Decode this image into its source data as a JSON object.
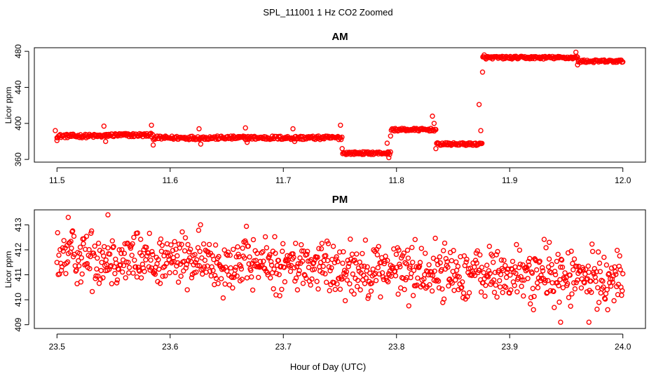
{
  "figure": {
    "title": "SPL_111001  1 Hz CO2 Zoomed",
    "xlabel": "Hour of Day (UTC)"
  },
  "colors": {
    "points": "#ff0000",
    "axes": "#000000",
    "background": "#ffffff"
  },
  "chart_data": [
    {
      "type": "scatter",
      "title": "AM",
      "xlabel": "",
      "ylabel": "Licor ppm",
      "xlim": [
        11.48,
        12.02
      ],
      "ylim": [
        357,
        484
      ],
      "xticks": [
        11.5,
        11.6,
        11.7,
        11.8,
        11.9,
        12.0
      ],
      "xtick_labels": [
        "11.5",
        "11.6",
        "11.7",
        "11.8",
        "11.9",
        "12.0"
      ],
      "yticks": [
        360,
        400,
        440,
        480
      ],
      "ytick_labels": [
        "360",
        "400",
        "440",
        "480"
      ],
      "marker": "open-circle",
      "segments": [
        {
          "x_start": 11.5,
          "x_end": 11.545,
          "level": 386,
          "noise": 2
        },
        {
          "x_start": 11.545,
          "x_end": 11.585,
          "level": 387,
          "noise": 2
        },
        {
          "x_start": 11.585,
          "x_end": 11.752,
          "level": 384,
          "noise": 2
        },
        {
          "x_start": 11.752,
          "x_end": 11.795,
          "level": 367,
          "noise": 1.5
        },
        {
          "x_start": 11.795,
          "x_end": 11.835,
          "level": 393,
          "noise": 1.5
        },
        {
          "x_start": 11.835,
          "x_end": 11.876,
          "level": 377,
          "noise": 1.5
        },
        {
          "x_start": 11.876,
          "x_end": 11.96,
          "level": 473,
          "noise": 1.5
        },
        {
          "x_start": 11.96,
          "x_end": 12.0,
          "level": 469,
          "noise": 1.5
        }
      ],
      "spikes": [
        {
          "x": 11.5,
          "values": [
            392,
            381
          ]
        },
        {
          "x": 11.543,
          "values": [
            397,
            380
          ]
        },
        {
          "x": 11.585,
          "values": [
            398,
            376
          ]
        },
        {
          "x": 11.627,
          "values": [
            394,
            377
          ]
        },
        {
          "x": 11.668,
          "values": [
            395,
            379
          ]
        },
        {
          "x": 11.71,
          "values": [
            394,
            380
          ]
        },
        {
          "x": 11.752,
          "values": [
            398,
            372
          ]
        },
        {
          "x": 11.794,
          "values": [
            378,
            362,
            386
          ]
        },
        {
          "x": 11.834,
          "values": [
            408,
            400,
            372
          ]
        },
        {
          "x": 11.876,
          "values": [
            421,
            392,
            457,
            476
          ]
        },
        {
          "x": 11.96,
          "values": [
            479,
            465
          ]
        }
      ],
      "n_points": 700
    },
    {
      "type": "scatter",
      "title": "PM",
      "xlabel": "Hour of Day (UTC)",
      "ylabel": "Licor ppm",
      "xlim": [
        23.48,
        24.02
      ],
      "ylim": [
        408.85,
        413.6
      ],
      "xticks": [
        23.5,
        23.6,
        23.7,
        23.8,
        23.9,
        24.0
      ],
      "xtick_labels": [
        "23.5",
        "23.6",
        "23.7",
        "23.8",
        "23.9",
        "24.0"
      ],
      "yticks": [
        409,
        410,
        411,
        412,
        413
      ],
      "ytick_labels": [
        "409",
        "410",
        "411",
        "412",
        "413"
      ],
      "marker": "open-circle",
      "trend_start": 411.8,
      "trend_end": 410.8,
      "noise": 0.55,
      "outliers": [
        {
          "x": 23.545,
          "y": 413.4
        },
        {
          "x": 23.51,
          "y": 413.3
        },
        {
          "x": 23.97,
          "y": 409.1
        },
        {
          "x": 23.945,
          "y": 409.1
        },
        {
          "x": 23.935,
          "y": 412.3
        }
      ],
      "n_points": 900
    }
  ]
}
